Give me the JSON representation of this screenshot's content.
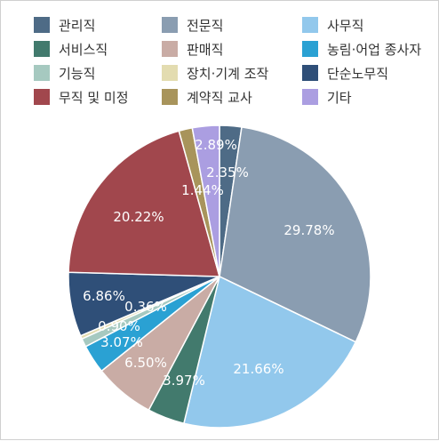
{
  "chart_data": {
    "type": "pie",
    "series": [
      {
        "name": "관리직",
        "value": 2.35,
        "label": "2.35%",
        "color": "#4e6b86"
      },
      {
        "name": "전문직",
        "value": 29.78,
        "label": "29.78%",
        "color": "#8a9db1"
      },
      {
        "name": "사무직",
        "value": 21.66,
        "label": "21.66%",
        "color": "#92c8ec"
      },
      {
        "name": "서비스직",
        "value": 3.97,
        "label": "3.97%",
        "color": "#427a6d"
      },
      {
        "name": "판매직",
        "value": 6.5,
        "label": "6.50%",
        "color": "#c9aca5"
      },
      {
        "name": "농림·어업 종사자",
        "value": 3.07,
        "label": "3.07%",
        "color": "#2aa1d3"
      },
      {
        "name": "기능직",
        "value": 0.9,
        "label": "0.90%",
        "color": "#a6c9c0"
      },
      {
        "name": "장치·기계 조작",
        "value": 0.36,
        "label": "0.36%",
        "color": "#e3dcb0"
      },
      {
        "name": "단순노무직",
        "value": 6.86,
        "label": "6.86%",
        "color": "#2f4f78"
      },
      {
        "name": "무직 및 미정",
        "value": 20.22,
        "label": "20.22%",
        "color": "#a1474d"
      },
      {
        "name": "계약직 교사",
        "value": 1.44,
        "label": "1.44%",
        "color": "#a8945b"
      },
      {
        "name": "기타",
        "value": 2.89,
        "label": "2.89%",
        "color": "#ab9ee1"
      }
    ],
    "legend_placement": "top"
  }
}
